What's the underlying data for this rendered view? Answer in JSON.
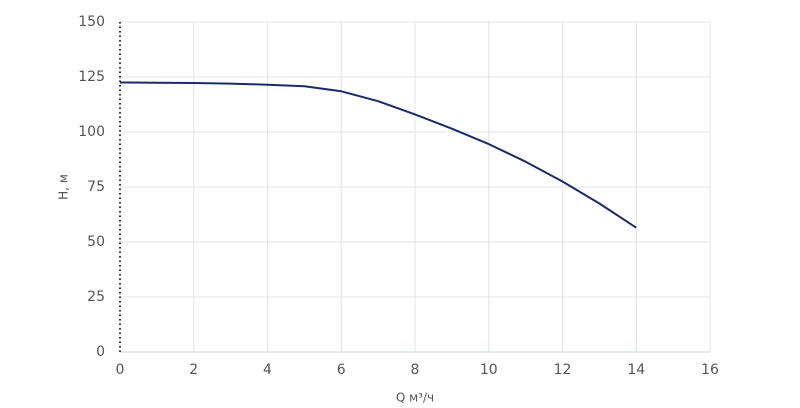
{
  "chart_data": {
    "type": "line",
    "xlabel": "Q м³/ч",
    "ylabel": "H, м",
    "x": [
      0,
      1,
      2,
      3,
      4,
      5,
      6,
      7,
      8,
      9,
      10,
      11,
      12,
      13,
      14
    ],
    "values": [
      122.5,
      122.4,
      122.3,
      122,
      121.5,
      120.8,
      118.5,
      114,
      108,
      101.5,
      94.5,
      86.5,
      77.5,
      67.5,
      56.5
    ],
    "color": "#1b2a6b",
    "xlim": [
      0,
      16
    ],
    "xticks": [
      0,
      2,
      4,
      6,
      8,
      10,
      12,
      14,
      16
    ],
    "ylim": [
      0,
      150
    ],
    "yticks": [
      0,
      25,
      50,
      75,
      100,
      125,
      150
    ],
    "grid": true
  }
}
